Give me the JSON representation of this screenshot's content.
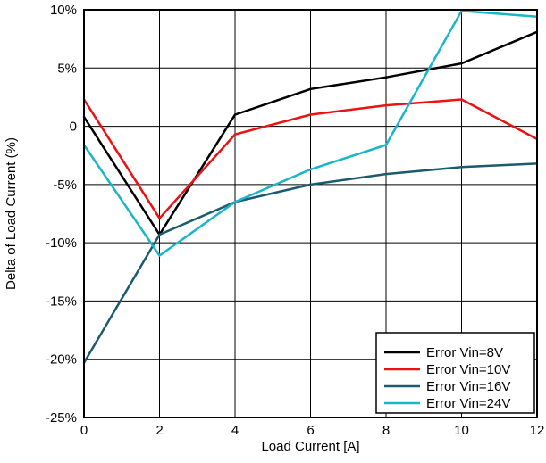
{
  "chart_data": {
    "type": "line",
    "xlabel": "Load Current [A]",
    "ylabel": "Delta of Load Current (%)",
    "xlim": [
      0,
      12
    ],
    "ylim": [
      -25,
      10
    ],
    "x_ticks": [
      0,
      2,
      4,
      6,
      8,
      10,
      12
    ],
    "x_tick_labels": [
      "0",
      "2",
      "4",
      "6",
      "8",
      "10",
      "12"
    ],
    "y_ticks": [
      10,
      5,
      0,
      -5,
      -10,
      -15,
      -20,
      -25
    ],
    "y_tick_labels": [
      "10%",
      "5%",
      "0",
      "-5%",
      "-10%",
      "-15%",
      "-20%",
      "-25%"
    ],
    "grid": true,
    "legend_position": "bottom-right",
    "x": [
      0,
      2,
      4,
      6,
      8,
      10,
      12
    ],
    "series": [
      {
        "name": "Error Vin=8V",
        "color": "#000000",
        "values": [
          0.8,
          -9.3,
          1.0,
          3.2,
          4.2,
          5.4,
          8.1
        ]
      },
      {
        "name": "Error Vin=10V",
        "color": "#ee1111",
        "values": [
          2.3,
          -7.9,
          -0.7,
          1.0,
          1.8,
          2.3,
          -1.1
        ]
      },
      {
        "name": "Error Vin=16V",
        "color": "#1c5a6e",
        "values": [
          -20.3,
          -9.3,
          -6.5,
          -5.0,
          -4.1,
          -3.5,
          -3.2
        ]
      },
      {
        "name": "Error Vin=24V",
        "color": "#19b5c8",
        "values": [
          -1.6,
          -11.1,
          -6.5,
          -3.7,
          -1.6,
          9.9,
          9.4
        ]
      }
    ]
  }
}
